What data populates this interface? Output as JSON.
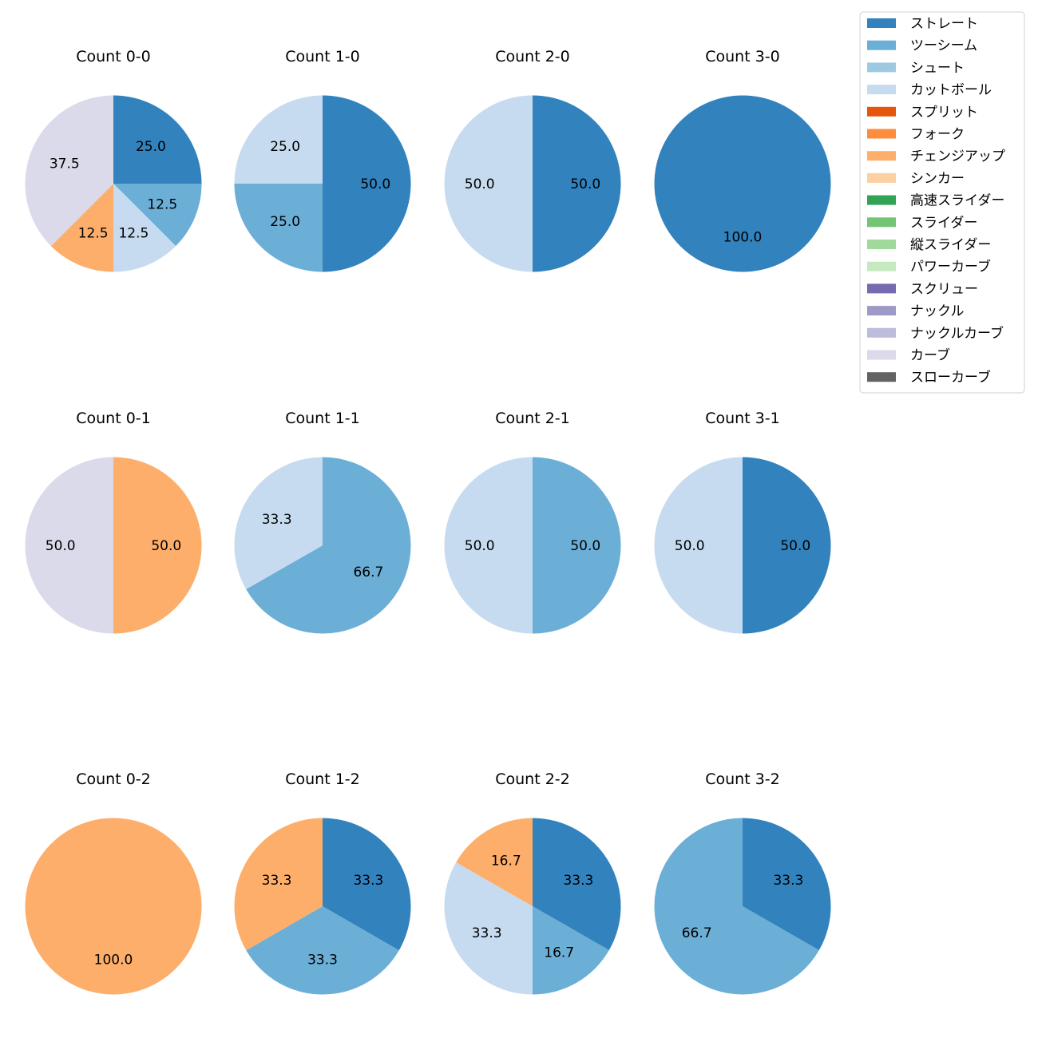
{
  "legend": {
    "entries": [
      {
        "label": "ストレート",
        "color": "#3182bd"
      },
      {
        "label": "ツーシーム",
        "color": "#6baed6"
      },
      {
        "label": "シュート",
        "color": "#9ecae1"
      },
      {
        "label": "カットボール",
        "color": "#c6dbef"
      },
      {
        "label": "スプリット",
        "color": "#e6550d"
      },
      {
        "label": "フォーク",
        "color": "#fd8d3c"
      },
      {
        "label": "チェンジアップ",
        "color": "#fdae6b"
      },
      {
        "label": "シンカー",
        "color": "#fdd0a2"
      },
      {
        "label": "高速スライダー",
        "color": "#31a354"
      },
      {
        "label": "スライダー",
        "color": "#74c476"
      },
      {
        "label": "縦スライダー",
        "color": "#a1d99b"
      },
      {
        "label": "パワーカーブ",
        "color": "#c7e9c0"
      },
      {
        "label": "スクリュー",
        "color": "#756bb1"
      },
      {
        "label": "ナックル",
        "color": "#9e9ac8"
      },
      {
        "label": "ナックルカーブ",
        "color": "#bcbddc"
      },
      {
        "label": "カーブ",
        "color": "#dadaeb"
      },
      {
        "label": "スローカーブ",
        "color": "#636363"
      }
    ]
  },
  "chart_data": [
    {
      "type": "pie",
      "title": "Count 0-0",
      "slices": [
        {
          "label": "ストレート",
          "value": 25.0,
          "text": "25.0"
        },
        {
          "label": "ツーシーム",
          "value": 12.5,
          "text": "12.5"
        },
        {
          "label": "カットボール",
          "value": 12.5,
          "text": "12.5"
        },
        {
          "label": "チェンジアップ",
          "value": 12.5,
          "text": "12.5"
        },
        {
          "label": "カーブ",
          "value": 37.5,
          "text": "37.5"
        }
      ]
    },
    {
      "type": "pie",
      "title": "Count 1-0",
      "slices": [
        {
          "label": "ストレート",
          "value": 50.0,
          "text": "50.0"
        },
        {
          "label": "ツーシーム",
          "value": 25.0,
          "text": "25.0"
        },
        {
          "label": "カットボール",
          "value": 25.0,
          "text": "25.0"
        }
      ]
    },
    {
      "type": "pie",
      "title": "Count 2-0",
      "slices": [
        {
          "label": "ストレート",
          "value": 50.0,
          "text": "50.0"
        },
        {
          "label": "カットボール",
          "value": 50.0,
          "text": "50.0"
        }
      ]
    },
    {
      "type": "pie",
      "title": "Count 3-0",
      "slices": [
        {
          "label": "ストレート",
          "value": 100.0,
          "text": "100.0"
        }
      ]
    },
    {
      "type": "pie",
      "title": "Count 0-1",
      "slices": [
        {
          "label": "チェンジアップ",
          "value": 50.0,
          "text": "50.0"
        },
        {
          "label": "カーブ",
          "value": 50.0,
          "text": "50.0"
        }
      ]
    },
    {
      "type": "pie",
      "title": "Count 1-1",
      "slices": [
        {
          "label": "ツーシーム",
          "value": 66.7,
          "text": "66.7"
        },
        {
          "label": "カットボール",
          "value": 33.3,
          "text": "33.3"
        }
      ]
    },
    {
      "type": "pie",
      "title": "Count 2-1",
      "slices": [
        {
          "label": "ツーシーム",
          "value": 50.0,
          "text": "50.0"
        },
        {
          "label": "カットボール",
          "value": 50.0,
          "text": "50.0"
        }
      ]
    },
    {
      "type": "pie",
      "title": "Count 3-1",
      "slices": [
        {
          "label": "ストレート",
          "value": 50.0,
          "text": "50.0"
        },
        {
          "label": "カットボール",
          "value": 50.0,
          "text": "50.0"
        }
      ]
    },
    {
      "type": "pie",
      "title": "Count 0-2",
      "slices": [
        {
          "label": "チェンジアップ",
          "value": 100.0,
          "text": "100.0"
        }
      ]
    },
    {
      "type": "pie",
      "title": "Count 1-2",
      "slices": [
        {
          "label": "ストレート",
          "value": 33.3,
          "text": "33.3"
        },
        {
          "label": "ツーシーム",
          "value": 33.3,
          "text": "33.3"
        },
        {
          "label": "チェンジアップ",
          "value": 33.3,
          "text": "33.3"
        }
      ]
    },
    {
      "type": "pie",
      "title": "Count 2-2",
      "slices": [
        {
          "label": "ストレート",
          "value": 33.3,
          "text": "33.3"
        },
        {
          "label": "ツーシーム",
          "value": 16.7,
          "text": "16.7"
        },
        {
          "label": "カットボール",
          "value": 33.3,
          "text": "33.3"
        },
        {
          "label": "チェンジアップ",
          "value": 16.7,
          "text": "16.7"
        }
      ]
    },
    {
      "type": "pie",
      "title": "Count 3-2",
      "slices": [
        {
          "label": "ストレート",
          "value": 33.3,
          "text": "33.3"
        },
        {
          "label": "ツーシーム",
          "value": 66.7,
          "text": "66.7"
        }
      ]
    }
  ]
}
